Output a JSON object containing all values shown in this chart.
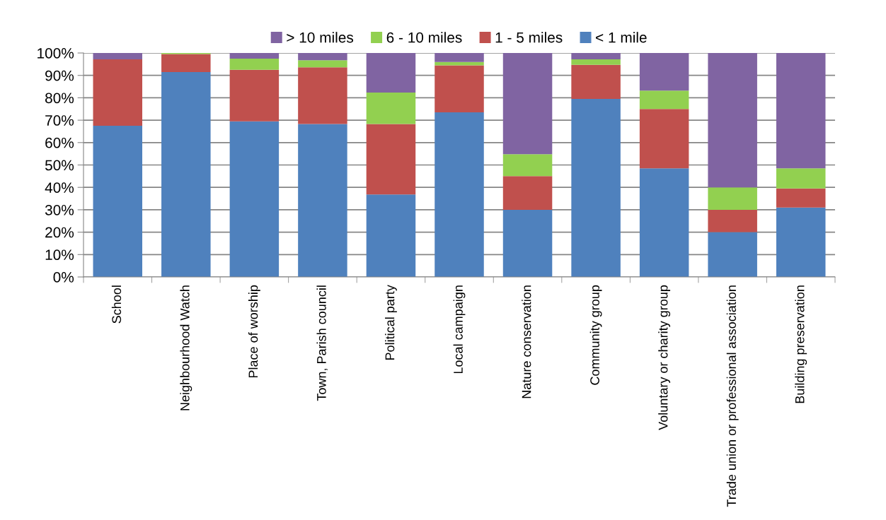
{
  "chart_data": {
    "type": "bar",
    "stacked": true,
    "categories": [
      "School",
      "Neighbourhood Watch",
      "Place of worship",
      "Town, Parish council",
      "Political party",
      "Local campaign",
      "Nature conservation",
      "Community group",
      "Voluntary or charity group",
      "Trade union or professional association",
      "Building preservation"
    ],
    "series": [
      {
        "name": "< 1 mile",
        "color": "#4f81bd",
        "values": [
          67.5,
          91.5,
          69.5,
          68.3,
          36.8,
          73.5,
          30,
          79.5,
          48.5,
          20,
          31
        ]
      },
      {
        "name": "1 - 5 miles",
        "color": "#c0504d",
        "values": [
          29.7,
          8,
          23,
          25.3,
          31.5,
          21,
          15,
          15.2,
          26.5,
          10,
          8.5
        ]
      },
      {
        "name": "6 - 10 miles",
        "color": "#92d050",
        "values": [
          0,
          0.5,
          5,
          3.2,
          14,
          1.5,
          9.8,
          2.5,
          8.2,
          10,
          9
        ]
      },
      {
        "name": "> 10 miles",
        "color": "#8064a2",
        "values": [
          2.8,
          0,
          2.5,
          3.2,
          17.7,
          4,
          45.2,
          2.8,
          16.8,
          60,
          51.5
        ]
      }
    ],
    "ylim": [
      0,
      100
    ],
    "yticks": [
      {
        "value": 0,
        "label": "0%"
      },
      {
        "value": 10,
        "label": "10%"
      },
      {
        "value": 20,
        "label": "20%"
      },
      {
        "value": 30,
        "label": "30%"
      },
      {
        "value": 40,
        "label": "40%"
      },
      {
        "value": 50,
        "label": "50%"
      },
      {
        "value": 60,
        "label": "60%"
      },
      {
        "value": 70,
        "label": "70%"
      },
      {
        "value": 80,
        "label": "80%"
      },
      {
        "value": 90,
        "label": "90%"
      },
      {
        "value": 100,
        "label": "100%"
      }
    ],
    "grid": "y",
    "legend": "top"
  }
}
